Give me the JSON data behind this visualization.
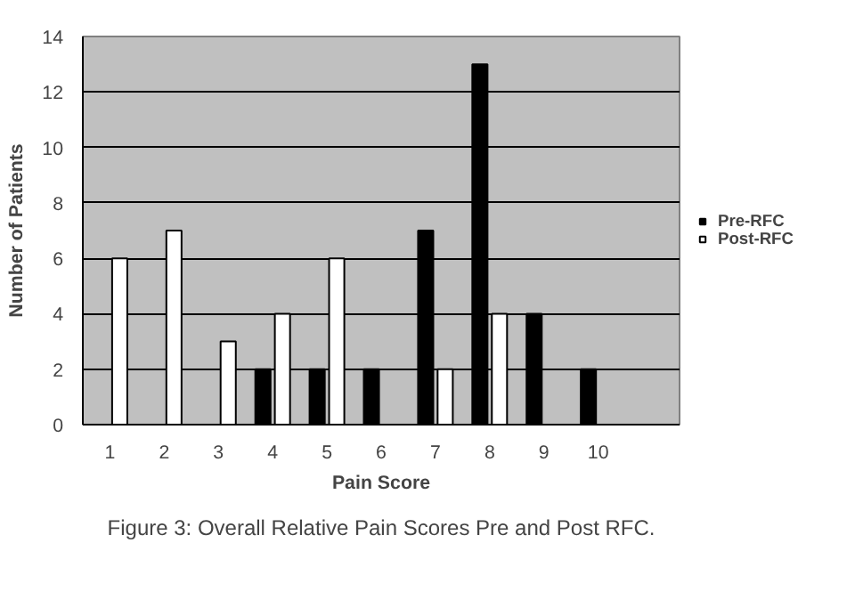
{
  "chart_data": {
    "type": "bar",
    "xlabel": "Pain Score",
    "ylabel": "Number of Patients",
    "categories": [
      "1",
      "2",
      "3",
      "4",
      "5",
      "6",
      "7",
      "8",
      "9",
      "10",
      null
    ],
    "series": [
      {
        "name": "Pre-RFC",
        "color": "#000000",
        "values": [
          0,
          0,
          0,
          2,
          2,
          2,
          7,
          13,
          4,
          2,
          null
        ]
      },
      {
        "name": "Post-RFC",
        "color": "#ffffff",
        "values": [
          6,
          7,
          3,
          4,
          6,
          0,
          2,
          4,
          0,
          0,
          null
        ]
      }
    ],
    "ylim": [
      0,
      14
    ],
    "yticks": [
      0,
      2,
      4,
      6,
      8,
      10,
      12,
      14
    ],
    "grid": "y",
    "legend": "right",
    "annotations": [
      "Figure 3: Overall Relative Pain Scores Pre and Post RFC."
    ]
  }
}
